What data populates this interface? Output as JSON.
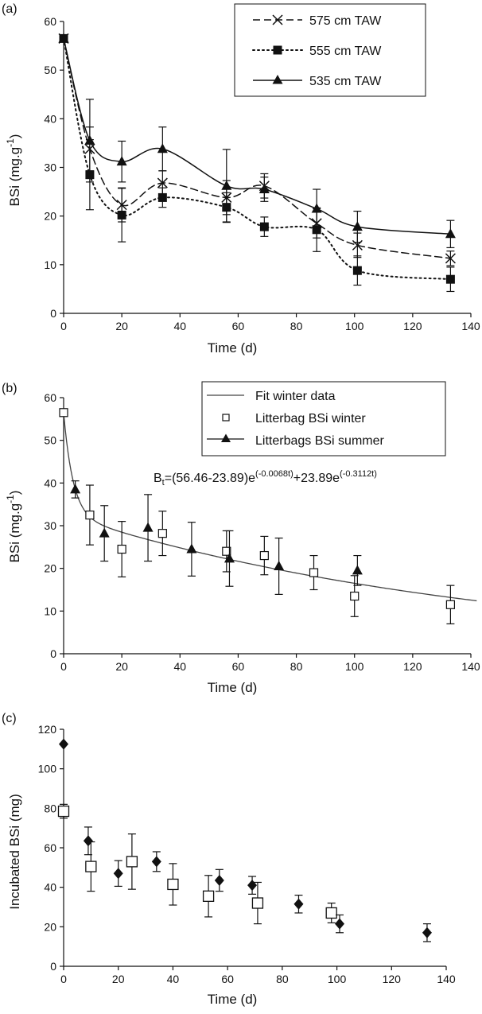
{
  "chart_data": [
    {
      "panel": "(a)",
      "type": "line",
      "xlabel": "Time (d)",
      "ylabel": "BSi (mg.g",
      "ylabel_sup": "-1",
      "ylabel_close": ")",
      "xlim": [
        0,
        140
      ],
      "ylim": [
        0,
        60
      ],
      "xticks": [
        0,
        20,
        40,
        60,
        80,
        100,
        120,
        140
      ],
      "yticks": [
        0,
        10,
        20,
        30,
        40,
        50,
        60
      ],
      "grid": false,
      "legend": "top-right",
      "series": [
        {
          "name": "575 cm TAW",
          "marker": "x",
          "line": "dashed",
          "x": [
            0,
            9,
            20,
            34,
            56,
            69,
            87,
            101,
            133
          ],
          "y": [
            56.5,
            33.8,
            22.3,
            26.8,
            23.8,
            26.2,
            18.5,
            14.0,
            11.3
          ],
          "err": [
            0,
            4.5,
            3.5,
            2.5,
            3.5,
            2.5,
            3.0,
            2.5,
            1.5
          ]
        },
        {
          "name": "555 cm TAW",
          "marker": "square",
          "line": "dotted",
          "x": [
            0,
            9,
            20,
            34,
            56,
            69,
            87,
            101,
            133
          ],
          "y": [
            56.5,
            28.5,
            20.2,
            23.8,
            21.8,
            17.8,
            17.2,
            8.8,
            7.0
          ],
          "err": [
            0,
            7.2,
            5.5,
            2.0,
            3.0,
            2.0,
            4.5,
            3.0,
            2.5
          ]
        },
        {
          "name": "535 cm TAW",
          "marker": "triangle",
          "line": "solid",
          "x": [
            0,
            9,
            20,
            34,
            56,
            69,
            87,
            101,
            133
          ],
          "y": [
            56.5,
            35.5,
            31.2,
            33.8,
            26.2,
            25.5,
            21.5,
            17.8,
            16.3
          ],
          "err": [
            0,
            8.5,
            4.2,
            4.5,
            7.5,
            2.5,
            4.0,
            3.2,
            2.8
          ]
        }
      ]
    },
    {
      "panel": "(b)",
      "type": "scatter",
      "xlabel": "Time (d)",
      "ylabel": "BSi (mg.g",
      "ylabel_sup": "-1",
      "ylabel_close": ")",
      "xlim": [
        0,
        140
      ],
      "ylim": [
        0,
        60
      ],
      "xticks": [
        0,
        20,
        40,
        60,
        80,
        100,
        120,
        140
      ],
      "yticks": [
        0,
        10,
        20,
        30,
        40,
        50,
        60
      ],
      "grid": false,
      "legend": "top-right",
      "equation": {
        "lhs": "B",
        "lhs_sub": "t",
        "mid1": "=(56.46-23.89)e",
        "exp1": "(-0.0068t)",
        "mid2": "+23.89e",
        "exp2": "(-0.3112t)"
      },
      "fit": {
        "name": "Fit winter data",
        "a": 56.46,
        "b": 23.89,
        "k1": 0.0068,
        "k2": 0.3112
      },
      "series": [
        {
          "name": "Litterbag BSi winter",
          "marker": "open-square",
          "x": [
            0,
            9,
            20,
            34,
            56,
            69,
            86,
            100,
            133
          ],
          "y": [
            56.5,
            32.5,
            24.5,
            28.2,
            24.0,
            23.0,
            19.0,
            13.5,
            11.5
          ],
          "err": [
            0,
            7.0,
            6.5,
            5.2,
            4.8,
            4.5,
            4.0,
            4.8,
            4.5
          ]
        },
        {
          "name": "Litterbags BSi summer",
          "marker": "triangle",
          "x": [
            4,
            14,
            29,
            44,
            57,
            74,
            101
          ],
          "y": [
            38.5,
            28.2,
            29.5,
            24.5,
            22.3,
            20.5,
            19.5
          ],
          "err": [
            2.0,
            6.5,
            7.8,
            6.3,
            6.5,
            6.6,
            3.5
          ]
        }
      ]
    },
    {
      "panel": "(c)",
      "type": "scatter",
      "xlabel": "Time (d)",
      "ylabel": "Incubated BSi (mg)",
      "xlim": [
        0,
        140
      ],
      "ylim": [
        0,
        120
      ],
      "xticks": [
        0,
        20,
        40,
        60,
        80,
        100,
        120,
        140
      ],
      "yticks": [
        0,
        20,
        40,
        60,
        80,
        100,
        120
      ],
      "grid": false,
      "series": [
        {
          "marker": "diamond",
          "x": [
            0,
            9,
            20,
            34,
            57,
            69,
            86,
            101,
            133
          ],
          "y": [
            112.5,
            63.5,
            47.0,
            53.0,
            43.5,
            41.0,
            31.5,
            21.5,
            17.0
          ],
          "err": [
            0,
            7.0,
            6.5,
            5.0,
            5.5,
            4.5,
            4.5,
            4.5,
            4.5
          ]
        },
        {
          "marker": "open-square",
          "x": [
            0,
            10,
            25,
            40,
            53,
            71,
            98
          ],
          "y": [
            78.5,
            50.5,
            53.0,
            41.5,
            35.5,
            32.0,
            27.0
          ],
          "err": [
            3.5,
            12.5,
            14.0,
            10.5,
            10.5,
            10.5,
            5.0
          ]
        }
      ]
    }
  ]
}
